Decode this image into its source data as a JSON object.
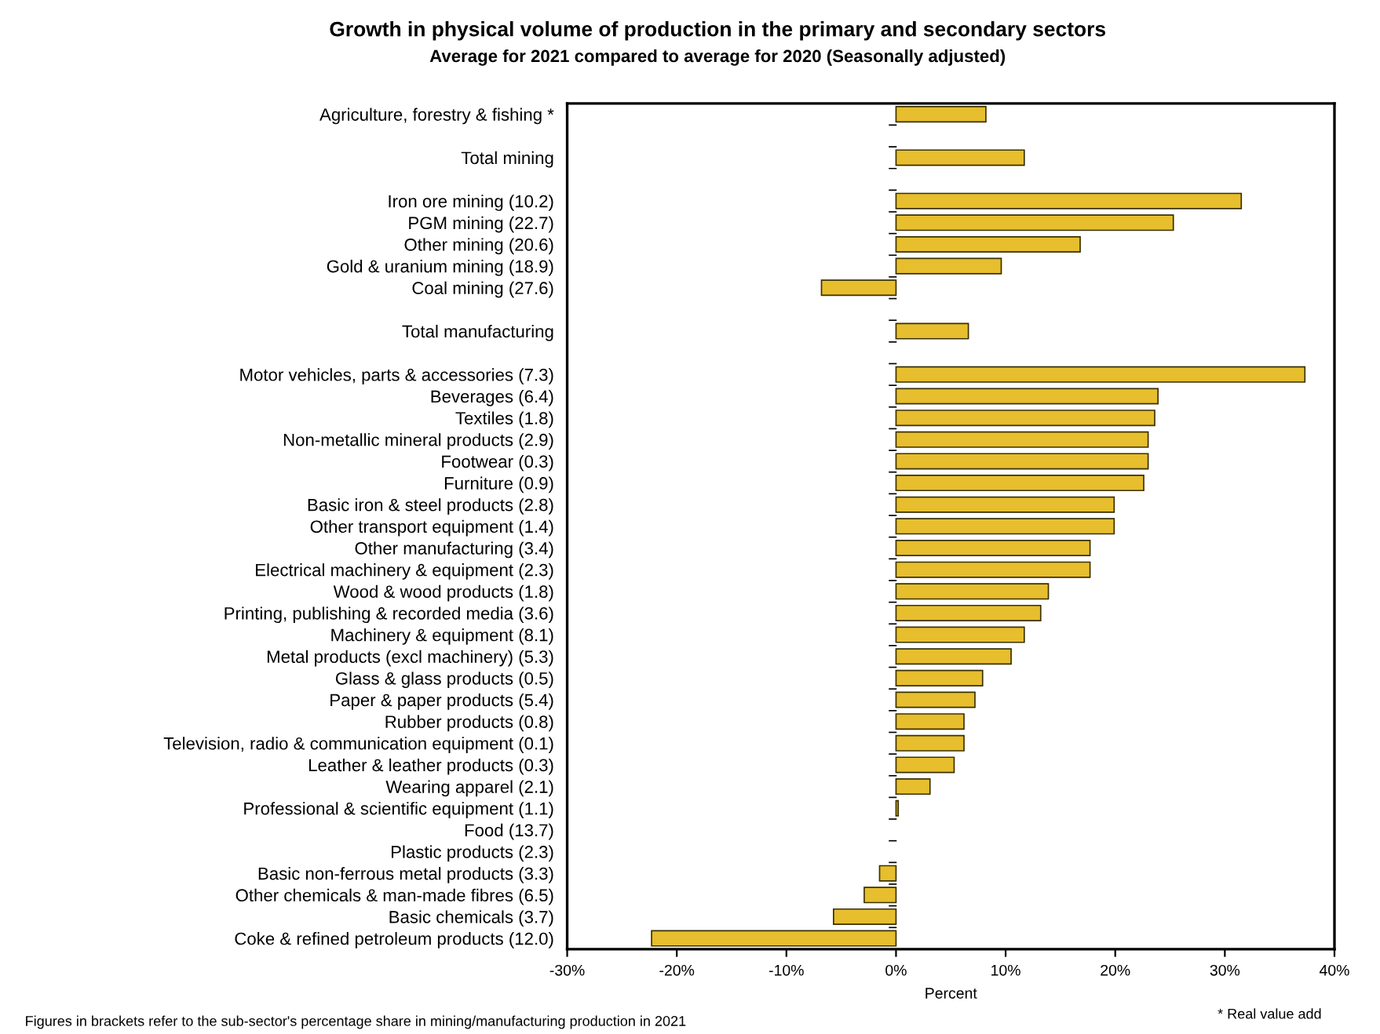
{
  "chart_data": {
    "type": "bar",
    "orientation": "horizontal",
    "title": "Growth in physical volume of production in the primary and secondary sectors",
    "subtitle": "Average for 2021 compared to average for 2020 (Seasonally adjusted)",
    "xlabel": "Percent",
    "categories": [
      "Agriculture, forestry & fishing *",
      null,
      "Total mining",
      null,
      "Iron ore mining (10.2)",
      "PGM mining (22.7)",
      "Other mining (20.6)",
      "Gold & uranium mining (18.9)",
      "Coal mining (27.6)",
      null,
      "Total manufacturing",
      null,
      "Motor vehicles, parts & accessories (7.3)",
      "Beverages (6.4)",
      "Textiles (1.8)",
      "Non-metallic mineral products (2.9)",
      "Footwear (0.3)",
      "Furniture (0.9)",
      "Basic iron & steel products (2.8)",
      "Other transport equipment (1.4)",
      "Other manufacturing (3.4)",
      "Electrical machinery & equipment (2.3)",
      "Wood & wood products (1.8)",
      "Printing, publishing & recorded media (3.6)",
      "Machinery & equipment (8.1)",
      "Metal products (excl machinery) (5.3)",
      "Glass & glass products (0.5)",
      "Paper & paper products (5.4)",
      "Rubber products (0.8)",
      "Television, radio & communication equipment (0.1)",
      "Leather & leather products (0.3)",
      "Wearing apparel (2.1)",
      "Professional & scientific equipment (1.1)",
      "Food (13.7)",
      "Plastic products (2.3)",
      "Basic non-ferrous metal products (3.3)",
      "Other chemicals & man-made fibres (6.5)",
      "Basic chemicals (3.7)",
      "Coke & refined petroleum products (12.0)"
    ],
    "values": [
      8.2,
      null,
      11.7,
      null,
      31.5,
      25.3,
      16.8,
      9.6,
      -6.8,
      null,
      6.6,
      null,
      37.3,
      23.9,
      23.6,
      23.0,
      23.0,
      22.6,
      19.9,
      19.9,
      17.7,
      17.7,
      13.9,
      13.2,
      11.7,
      10.5,
      7.9,
      7.2,
      6.2,
      6.2,
      5.3,
      3.1,
      0.2,
      0,
      0,
      -1.5,
      -2.9,
      -5.7,
      -22.3
    ],
    "color": "#e6be2e",
    "xlim": [
      -30,
      40
    ],
    "xticks": [
      {
        "value": -30,
        "label": "-30%"
      },
      {
        "value": -20,
        "label": "-20%"
      },
      {
        "value": -10,
        "label": "-10%"
      },
      {
        "value": 0,
        "label": "0%"
      },
      {
        "value": 10,
        "label": "10%"
      },
      {
        "value": 20,
        "label": "20%"
      },
      {
        "value": 30,
        "label": "30%"
      },
      {
        "value": 40,
        "label": "40%"
      }
    ],
    "grid": false,
    "legend": false,
    "annotations": [
      "Figures in brackets refer to the sub-sector's percentage share in mining/manufacturing production in 2021",
      "* Real value add"
    ]
  }
}
